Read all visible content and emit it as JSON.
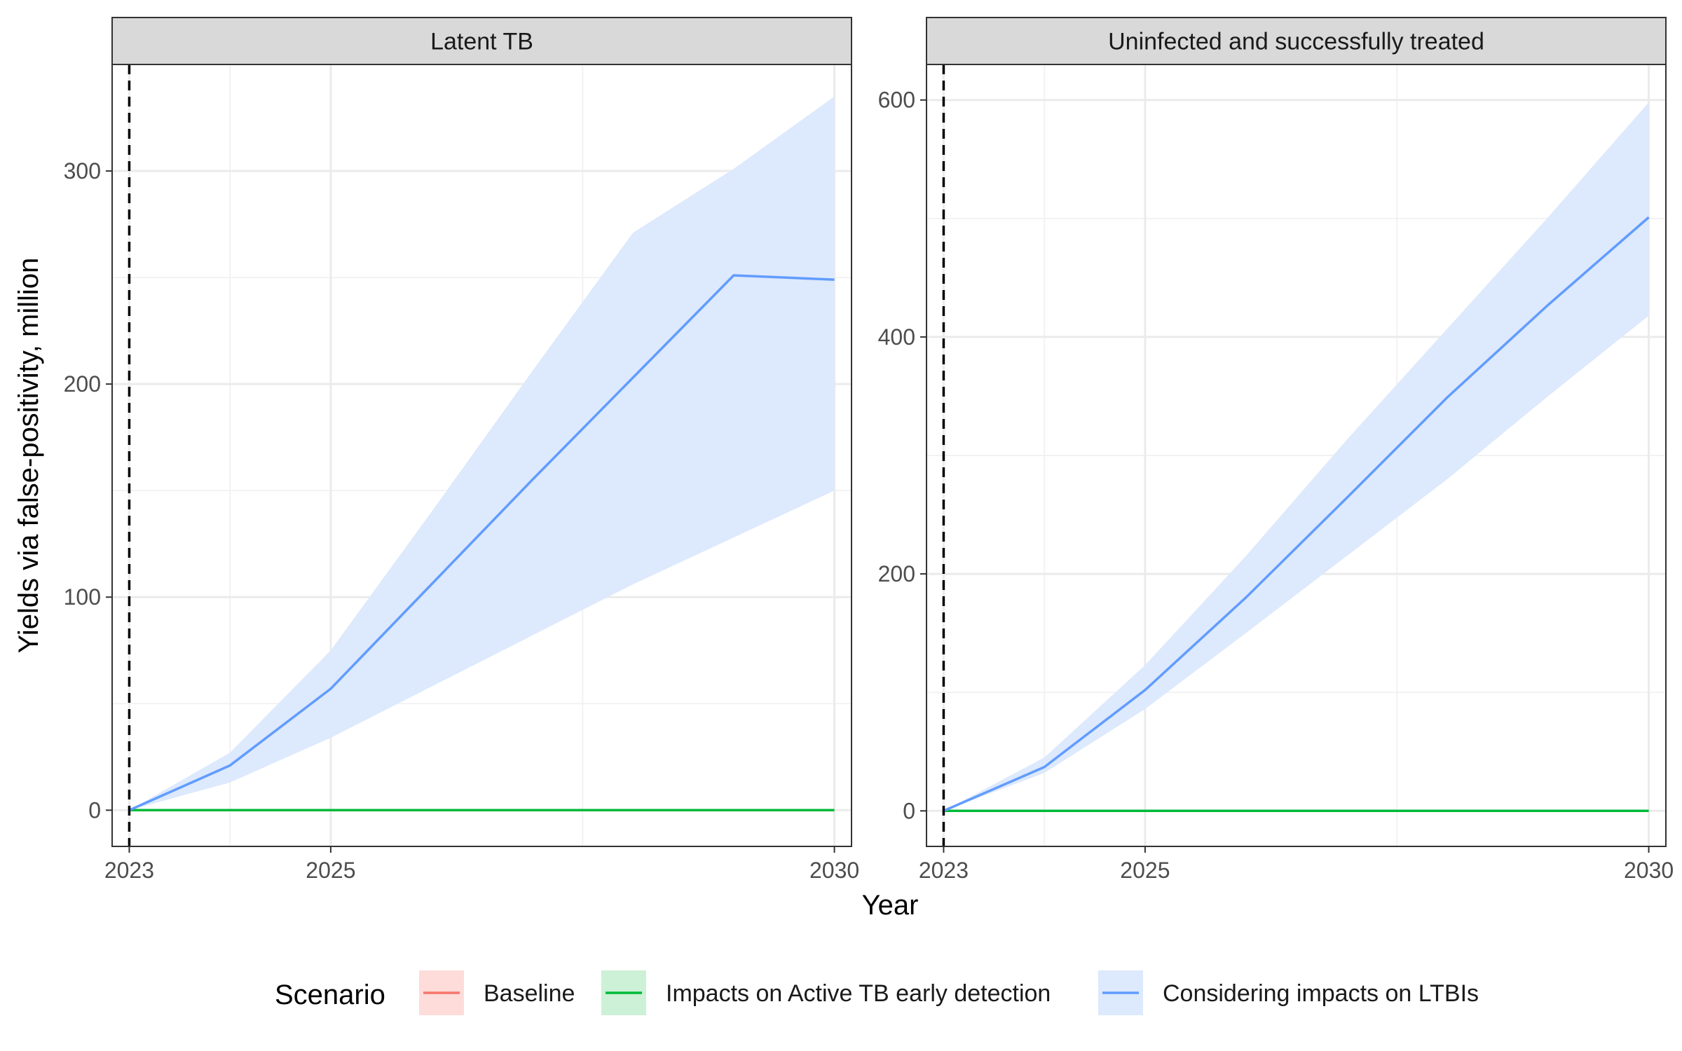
{
  "chart_data": {
    "type": "area",
    "xlabel": "Year",
    "ylabel": "Yields via false-positivity, million",
    "intervention_year": 2023,
    "grid": true,
    "legend": {
      "title": "Scenario",
      "position": "bottom",
      "entries": [
        {
          "name": "Baseline",
          "line_color": "#F8766D",
          "fill_color": "#FDDCDA"
        },
        {
          "name": "Impacts on Active TB early detection",
          "line_color": "#00BA38",
          "fill_color": "#CCF1D7"
        },
        {
          "name": "Considering impacts on LTBIs",
          "line_color": "#619CFF",
          "fill_color": "#DDE9FC"
        }
      ]
    },
    "panels": [
      {
        "title": "Latent TB",
        "xlim": [
          2022.83,
          2030.17
        ],
        "ylim": [
          -17,
          350
        ],
        "x_ticks": [
          2023,
          2025,
          2030
        ],
        "y_ticks": [
          0,
          100,
          200,
          300
        ],
        "series": [
          {
            "name": "Baseline",
            "x": [
              2023,
              2024,
              2025,
              2026,
              2027,
              2028,
              2029,
              2030
            ],
            "y": [
              0,
              0,
              0,
              0,
              0,
              0,
              0,
              0
            ]
          },
          {
            "name": "Impacts on Active TB early detection",
            "x": [
              2023,
              2024,
              2025,
              2026,
              2027,
              2028,
              2029,
              2030
            ],
            "y": [
              0,
              0,
              0,
              0,
              0,
              0,
              0,
              0
            ]
          },
          {
            "name": "Considering impacts on LTBIs",
            "x": [
              2023,
              2024,
              2025,
              2026,
              2027,
              2028,
              2029,
              2030
            ],
            "y": [
              0,
              21,
              57,
              106,
              155,
              203,
              251,
              249
            ],
            "lower": [
              0,
              13,
              34,
              58,
              82,
              106,
              128,
              150
            ],
            "upper": [
              0,
              27,
              75,
              140,
              206,
              271,
              301,
              335
            ]
          }
        ]
      },
      {
        "title": "Uninfected and successfully treated",
        "xlim": [
          2022.83,
          2030.17
        ],
        "ylim": [
          -30,
          630
        ],
        "x_ticks": [
          2023,
          2025,
          2030
        ],
        "y_ticks": [
          0,
          200,
          400,
          600
        ],
        "series": [
          {
            "name": "Baseline",
            "x": [
              2023,
              2024,
              2025,
              2026,
              2027,
              2028,
              2029,
              2030
            ],
            "y": [
              0,
              0,
              0,
              0,
              0,
              0,
              0,
              0
            ]
          },
          {
            "name": "Impacts on Active TB early detection",
            "x": [
              2023,
              2024,
              2025,
              2026,
              2027,
              2028,
              2029,
              2030
            ],
            "y": [
              0,
              0,
              0,
              0,
              0,
              0,
              0,
              0
            ]
          },
          {
            "name": "Considering impacts on LTBIs",
            "x": [
              2023,
              2024,
              2025,
              2026,
              2027,
              2028,
              2029,
              2030
            ],
            "y": [
              0,
              37,
              102,
              180,
              264,
              349,
              427,
              501
            ],
            "lower": [
              0,
              32,
              86,
              150,
              215,
              280,
              350,
              418
            ],
            "upper": [
              0,
              45,
              123,
              215,
              313,
              407,
              501,
              598
            ]
          }
        ]
      }
    ]
  }
}
